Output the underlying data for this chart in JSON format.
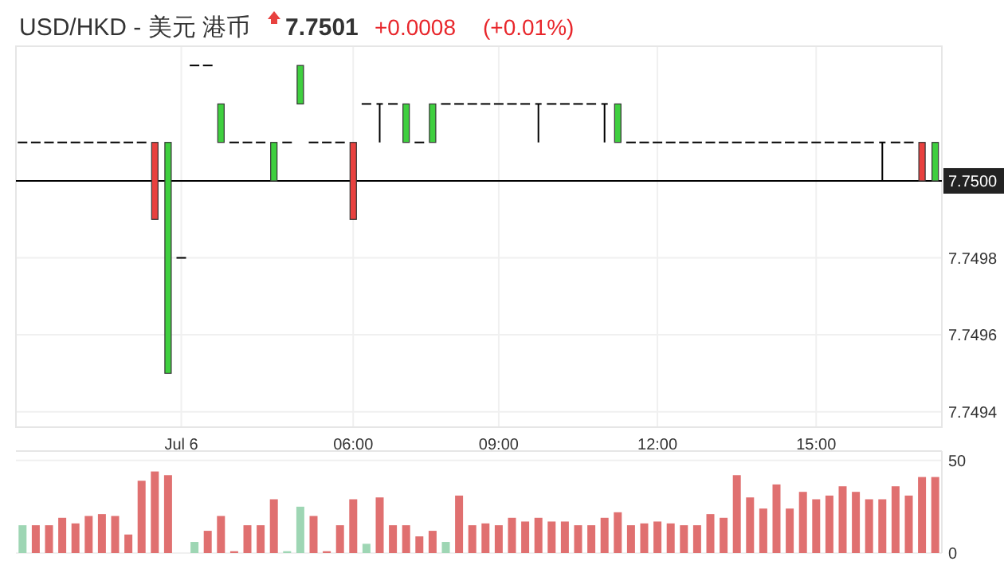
{
  "chart_data": [
    {
      "type": "candlestick",
      "title": "USD/HKD - 美元 港币",
      "subtitle": "7.7501",
      "annotations": [
        "+0.0008",
        "(+0.01%)"
      ],
      "categories": [
        null,
        null,
        null,
        null,
        null,
        null,
        null,
        null,
        null,
        null,
        null,
        null,
        "Jul 6",
        null,
        null,
        null,
        null,
        null,
        null,
        null,
        null,
        null,
        null,
        null,
        null,
        "06:00",
        null,
        null,
        null,
        null,
        null,
        null,
        null,
        null,
        null,
        null,
        "09:00",
        null,
        null,
        null,
        null,
        null,
        null,
        null,
        null,
        null,
        null,
        null,
        "12:00",
        null,
        null,
        null,
        null,
        null,
        null,
        null,
        null,
        null,
        null,
        null,
        "15:00",
        null,
        null,
        null,
        null,
        null,
        null,
        null,
        null,
        null
      ],
      "ohlc": [
        [
          7.7501,
          7.7501,
          7.7501,
          7.7501
        ],
        [
          7.7501,
          7.7501,
          7.7501,
          7.7501
        ],
        [
          7.7501,
          7.7501,
          7.7501,
          7.7501
        ],
        [
          7.7501,
          7.7501,
          7.7501,
          7.7501
        ],
        [
          7.7501,
          7.7501,
          7.7501,
          7.7501
        ],
        [
          7.7501,
          7.7501,
          7.7501,
          7.7501
        ],
        [
          7.7501,
          7.7501,
          7.7501,
          7.7501
        ],
        [
          7.7501,
          7.7501,
          7.7501,
          7.7501
        ],
        [
          7.7501,
          7.7501,
          7.7501,
          7.7501
        ],
        [
          7.7501,
          7.7501,
          7.7501,
          7.7501
        ],
        [
          7.7501,
          7.7501,
          7.7499,
          7.7499
        ],
        [
          7.7495,
          7.7501,
          7.7495,
          7.7501
        ],
        [
          7.7498,
          7.7498,
          7.7498,
          7.7498
        ],
        [
          7.7503,
          7.7503,
          7.7503,
          7.7503
        ],
        [
          7.7503,
          7.7503,
          7.7503,
          7.7503
        ],
        [
          7.7501,
          7.7502,
          7.7501,
          7.7502
        ],
        [
          7.7501,
          7.7501,
          7.7501,
          7.7501
        ],
        [
          7.7501,
          7.7501,
          7.7501,
          7.7501
        ],
        [
          7.7501,
          7.7501,
          7.7501,
          7.7501
        ],
        [
          7.75,
          7.7501,
          7.75,
          7.7501
        ],
        [
          7.7501,
          7.7501,
          7.7501,
          7.7501
        ],
        [
          7.7502,
          7.7503,
          7.7502,
          7.7503
        ],
        [
          7.7501,
          7.7501,
          7.7501,
          7.7501
        ],
        [
          7.7501,
          7.7501,
          7.7501,
          7.7501
        ],
        [
          7.7501,
          7.7501,
          7.7501,
          7.7501
        ],
        [
          7.7501,
          7.7501,
          7.7499,
          7.7499
        ],
        [
          7.7502,
          7.7502,
          7.7502,
          7.7502
        ],
        [
          7.7502,
          7.7502,
          7.7501,
          7.7502
        ],
        [
          7.7502,
          7.7502,
          7.7502,
          7.7502
        ],
        [
          7.7501,
          7.7502,
          7.7501,
          7.7502
        ],
        [
          7.7501,
          7.7501,
          7.7501,
          7.7501
        ],
        [
          7.7501,
          7.7502,
          7.7501,
          7.7502
        ],
        [
          7.7502,
          7.7502,
          7.7502,
          7.7502
        ],
        [
          7.7502,
          7.7502,
          7.7502,
          7.7502
        ],
        [
          7.7502,
          7.7502,
          7.7502,
          7.7502
        ],
        [
          7.7502,
          7.7502,
          7.7502,
          7.7502
        ],
        [
          7.7502,
          7.7502,
          7.7502,
          7.7502
        ],
        [
          7.7502,
          7.7502,
          7.7502,
          7.7502
        ],
        [
          7.7502,
          7.7502,
          7.7502,
          7.7502
        ],
        [
          7.7502,
          7.7502,
          7.7501,
          7.7502
        ],
        [
          7.7502,
          7.7502,
          7.7502,
          7.7502
        ],
        [
          7.7502,
          7.7502,
          7.7502,
          7.7502
        ],
        [
          7.7502,
          7.7502,
          7.7502,
          7.7502
        ],
        [
          7.7502,
          7.7502,
          7.7502,
          7.7502
        ],
        [
          7.7502,
          7.7502,
          7.7501,
          7.7502
        ],
        [
          7.7501,
          7.7502,
          7.7501,
          7.7502
        ],
        [
          7.7501,
          7.7501,
          7.7501,
          7.7501
        ],
        [
          7.7501,
          7.7501,
          7.7501,
          7.7501
        ],
        [
          7.7501,
          7.7501,
          7.7501,
          7.7501
        ],
        [
          7.7501,
          7.7501,
          7.7501,
          7.7501
        ],
        [
          7.7501,
          7.7501,
          7.7501,
          7.7501
        ],
        [
          7.7501,
          7.7501,
          7.7501,
          7.7501
        ],
        [
          7.7501,
          7.7501,
          7.7501,
          7.7501
        ],
        [
          7.7501,
          7.7501,
          7.7501,
          7.7501
        ],
        [
          7.7501,
          7.7501,
          7.7501,
          7.7501
        ],
        [
          7.7501,
          7.7501,
          7.7501,
          7.7501
        ],
        [
          7.7501,
          7.7501,
          7.7501,
          7.7501
        ],
        [
          7.7501,
          7.7501,
          7.7501,
          7.7501
        ],
        [
          7.7501,
          7.7501,
          7.7501,
          7.7501
        ],
        [
          7.7501,
          7.7501,
          7.7501,
          7.7501
        ],
        [
          7.7501,
          7.7501,
          7.7501,
          7.7501
        ],
        [
          7.7501,
          7.7501,
          7.7501,
          7.7501
        ],
        [
          7.7501,
          7.7501,
          7.7501,
          7.7501
        ],
        [
          7.7501,
          7.7501,
          7.7501,
          7.7501
        ],
        [
          7.7501,
          7.7501,
          7.7501,
          7.7501
        ],
        [
          7.7501,
          7.7501,
          7.75,
          7.7501
        ],
        [
          7.7501,
          7.7501,
          7.7501,
          7.7501
        ],
        [
          7.7501,
          7.7501,
          7.7501,
          7.7501
        ],
        [
          7.7501,
          7.7501,
          7.75,
          7.75
        ],
        [
          7.75,
          7.7501,
          7.75,
          7.7501
        ]
      ],
      "colors": [
        "#000000",
        "#000000",
        "#000000",
        "#000000",
        "#000000",
        "#000000",
        "#000000",
        "#000000",
        "#000000",
        "#000000",
        "#e8413f",
        "#3fcf3f",
        "#000000",
        "#000000",
        "#000000",
        "#3fcf3f",
        "#000000",
        "#000000",
        "#000000",
        "#3fcf3f",
        "#000000",
        "#3fcf3f",
        "#000000",
        "#000000",
        "#000000",
        "#e8413f",
        "#000000",
        "#000000",
        "#000000",
        "#3fcf3f",
        "#000000",
        "#3fcf3f",
        "#000000",
        "#000000",
        "#000000",
        "#000000",
        "#000000",
        "#000000",
        "#000000",
        "#000000",
        "#000000",
        "#000000",
        "#000000",
        "#000000",
        "#000000",
        "#3fcf3f",
        "#000000",
        "#000000",
        "#000000",
        "#000000",
        "#000000",
        "#000000",
        "#000000",
        "#000000",
        "#000000",
        "#000000",
        "#000000",
        "#000000",
        "#000000",
        "#000000",
        "#000000",
        "#000000",
        "#000000",
        "#000000",
        "#000000",
        "#000000",
        "#000000",
        "#000000",
        "#e8413f",
        "#3fcf3f"
      ],
      "ylim": [
        7.74936,
        7.75035
      ],
      "yticks": [
        {
          "value": 7.7494,
          "label": "7.7494"
        },
        {
          "value": 7.7496,
          "label": "7.7496"
        },
        {
          "value": 7.7498,
          "label": "7.7498"
        }
      ],
      "ref_lines": [
        {
          "axis": "y",
          "value": 7.75,
          "label": "7.7500",
          "color": "#000000"
        }
      ],
      "grid": true
    },
    {
      "type": "bar",
      "categories": [
        null,
        null,
        null,
        null,
        null,
        null,
        null,
        null,
        null,
        null,
        null,
        null,
        null,
        null,
        null,
        null,
        null,
        null,
        null,
        null,
        null,
        null,
        null,
        null,
        null,
        null,
        null,
        null,
        null,
        null,
        null,
        null,
        null,
        null,
        null,
        null,
        null,
        null,
        null,
        null,
        null,
        null,
        null,
        null,
        null,
        null,
        null,
        null,
        null,
        null,
        null,
        null,
        null,
        null,
        null,
        null,
        null,
        null,
        null,
        null,
        null,
        null,
        null,
        null,
        null,
        null,
        null,
        null,
        null,
        null
      ],
      "values": [
        15,
        15,
        15,
        19,
        16,
        20,
        21,
        20,
        10,
        39,
        44,
        42,
        0,
        6,
        12,
        20,
        1,
        15,
        15,
        29,
        1,
        25,
        20,
        1,
        15,
        29,
        5,
        30,
        15,
        15,
        9,
        12,
        6,
        31,
        15,
        16,
        15,
        19,
        17,
        19,
        17,
        17,
        15,
        15,
        19,
        22,
        15,
        16,
        17,
        16,
        15,
        15,
        21,
        19,
        42,
        30,
        24,
        37,
        24,
        33,
        29,
        31,
        36,
        33,
        29,
        29,
        36,
        31,
        41,
        41
      ],
      "colors": [
        "#9ed6b4",
        "#e07070",
        "#e07070",
        "#e07070",
        "#e07070",
        "#e07070",
        "#e07070",
        "#e07070",
        "#e07070",
        "#e07070",
        "#e07070",
        "#e07070",
        "#e07070",
        "#9ed6b4",
        "#e07070",
        "#e07070",
        "#e07070",
        "#e07070",
        "#e07070",
        "#e07070",
        "#9ed6b4",
        "#9ed6b4",
        "#e07070",
        "#e07070",
        "#e07070",
        "#e07070",
        "#9ed6b4",
        "#e07070",
        "#e07070",
        "#e07070",
        "#e07070",
        "#e07070",
        "#9ed6b4",
        "#e07070",
        "#e07070",
        "#e07070",
        "#e07070",
        "#e07070",
        "#e07070",
        "#e07070",
        "#e07070",
        "#e07070",
        "#e07070",
        "#e07070",
        "#e07070",
        "#e07070",
        "#e07070",
        "#e07070",
        "#e07070",
        "#e07070",
        "#e07070",
        "#e07070",
        "#e07070",
        "#e07070",
        "#e07070",
        "#e07070",
        "#e07070",
        "#e07070",
        "#e07070",
        "#e07070",
        "#e07070",
        "#e07070",
        "#e07070",
        "#e07070",
        "#e07070",
        "#e07070",
        "#e07070",
        "#e07070",
        "#e07070",
        "#e07070"
      ],
      "ylim": [
        0,
        55
      ],
      "yticks": [
        0,
        50
      ],
      "tick_labels": "y",
      "grid": true
    }
  ]
}
